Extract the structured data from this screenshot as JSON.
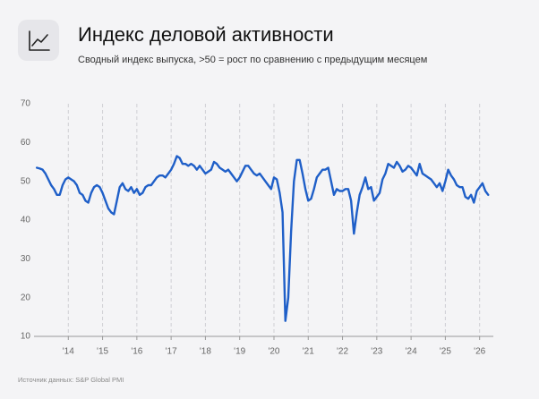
{
  "chart_data": {
    "type": "line",
    "title": "Индекс деловой активности",
    "subtitle": "Сводный индекс выпуска, >50 = рост по сравнению с предыдущим месяцем",
    "source": "Источник данных: S&P Global PMI",
    "color": "#1f5fc8",
    "grid": true,
    "xlim": [
      2013,
      2026.4
    ],
    "ylim": [
      10,
      70
    ],
    "yticks": [
      10,
      20,
      30,
      40,
      50,
      60,
      70
    ],
    "xticks": [
      {
        "value": 2014,
        "label": "'14"
      },
      {
        "value": 2015,
        "label": "'15"
      },
      {
        "value": 2016,
        "label": "'16"
      },
      {
        "value": 2017,
        "label": "'17"
      },
      {
        "value": 2018,
        "label": "'18"
      },
      {
        "value": 2019,
        "label": "'19"
      },
      {
        "value": 2020,
        "label": "'20"
      },
      {
        "value": 2021,
        "label": "'21"
      },
      {
        "value": 2022,
        "label": "'22"
      },
      {
        "value": 2023,
        "label": "'23"
      },
      {
        "value": 2024,
        "label": "'24"
      },
      {
        "value": 2025,
        "label": "'25"
      },
      {
        "value": 2026,
        "label": "'26"
      }
    ],
    "x": [
      2013.083,
      2013.167,
      2013.25,
      2013.333,
      2013.417,
      2013.5,
      2013.583,
      2013.667,
      2013.75,
      2013.833,
      2013.917,
      2014,
      2014.083,
      2014.167,
      2014.25,
      2014.333,
      2014.417,
      2014.5,
      2014.583,
      2014.667,
      2014.75,
      2014.833,
      2014.917,
      2015,
      2015.083,
      2015.167,
      2015.25,
      2015.333,
      2015.417,
      2015.5,
      2015.583,
      2015.667,
      2015.75,
      2015.833,
      2015.917,
      2016,
      2016.083,
      2016.167,
      2016.25,
      2016.333,
      2016.417,
      2016.5,
      2016.583,
      2016.667,
      2016.75,
      2016.833,
      2016.917,
      2017,
      2017.083,
      2017.167,
      2017.25,
      2017.333,
      2017.417,
      2017.5,
      2017.583,
      2017.667,
      2017.75,
      2017.833,
      2017.917,
      2018,
      2018.083,
      2018.167,
      2018.25,
      2018.333,
      2018.417,
      2018.5,
      2018.583,
      2018.667,
      2018.75,
      2018.833,
      2018.917,
      2019,
      2019.083,
      2019.167,
      2019.25,
      2019.333,
      2019.417,
      2019.5,
      2019.583,
      2019.667,
      2019.75,
      2019.833,
      2019.917,
      2020,
      2020.083,
      2020.167,
      2020.25,
      2020.333,
      2020.417,
      2020.5,
      2020.583,
      2020.667,
      2020.75,
      2020.833,
      2020.917,
      2021,
      2021.083,
      2021.167,
      2021.25,
      2021.333,
      2021.417,
      2021.5,
      2021.583,
      2021.667,
      2021.75,
      2021.833,
      2021.917,
      2022,
      2022.083,
      2022.167,
      2022.25,
      2022.333,
      2022.417,
      2022.5,
      2022.583,
      2022.667,
      2022.75,
      2022.833,
      2022.917,
      2023,
      2023.083,
      2023.167,
      2023.25,
      2023.333,
      2023.417,
      2023.5,
      2023.583,
      2023.667,
      2023.75,
      2023.833,
      2023.917,
      2024,
      2024.083,
      2024.167,
      2024.25,
      2024.333,
      2024.417,
      2024.5,
      2024.583,
      2024.667,
      2024.75,
      2024.833,
      2024.917,
      2025,
      2025.083,
      2025.167,
      2025.25,
      2025.333,
      2025.417,
      2025.5,
      2025.583,
      2025.667,
      2025.75,
      2025.833,
      2025.917,
      2026,
      2026.083,
      2026.167,
      2026.25
    ],
    "values": [
      53.5,
      53.3,
      53,
      52,
      50.5,
      49,
      48,
      46.5,
      46.5,
      49,
      50.5,
      51,
      50.5,
      50,
      49,
      47,
      46.5,
      45,
      44.5,
      47,
      48.5,
      49,
      48.5,
      47,
      45,
      43,
      42,
      41.5,
      45,
      48.5,
      49.5,
      48,
      47.5,
      48.5,
      47,
      48,
      46.5,
      47,
      48.5,
      49,
      49,
      50,
      51,
      51.5,
      51.5,
      51,
      52,
      53,
      54.5,
      56.5,
      56,
      54.5,
      54.5,
      54,
      54.5,
      54,
      53,
      54,
      53,
      52,
      52.5,
      53,
      55,
      54.5,
      53.5,
      53,
      52.5,
      53,
      52,
      51,
      50,
      51,
      52.5,
      54,
      54,
      53,
      52,
      51.5,
      52,
      51,
      50,
      49,
      48,
      51,
      50.5,
      47,
      42,
      14,
      20,
      37,
      50,
      55.5,
      55.5,
      52,
      48,
      45,
      45.5,
      48,
      51,
      52,
      53,
      53,
      53.5,
      50,
      46.5,
      48,
      47.5,
      47.5,
      48,
      48,
      45,
      36.5,
      42,
      46.5,
      48.5,
      51,
      48,
      48.5,
      45,
      46,
      47,
      50.5,
      52,
      54.5,
      54,
      53.5,
      55,
      54,
      52.5,
      53,
      54,
      53.5,
      52.5,
      51.5,
      54.5,
      52,
      51.5,
      51,
      50.5,
      49.5,
      48.5,
      49.5,
      47.5,
      50,
      53,
      51.5,
      50.5,
      49,
      48.5,
      48.5,
      46,
      45.5,
      46.5,
      44.5,
      47.5,
      48.5,
      49.5,
      47.5,
      46.5
    ]
  }
}
